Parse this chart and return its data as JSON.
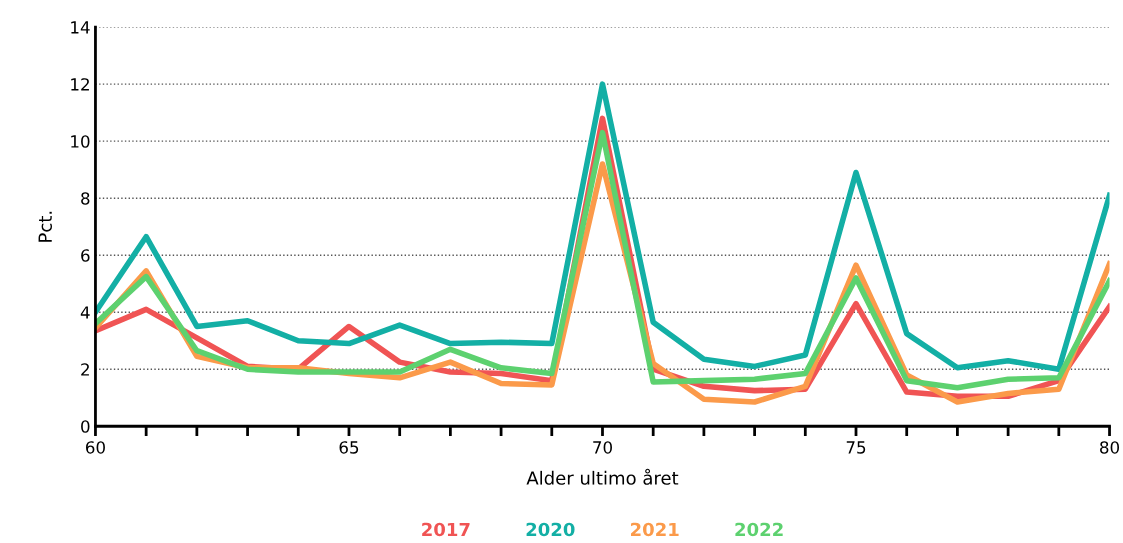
{
  "chart_data": {
    "type": "line",
    "xlabel": "Alder ultimo året",
    "ylabel": "Pct.",
    "x": [
      60,
      61,
      62,
      63,
      64,
      65,
      66,
      67,
      68,
      69,
      70,
      71,
      72,
      73,
      74,
      75,
      76,
      77,
      78,
      79,
      80
    ],
    "xlim": [
      60,
      80
    ],
    "xticks": [
      60,
      {
        "value": 61,
        "label": null
      },
      {
        "value": 62,
        "label": null
      },
      {
        "value": 63,
        "label": null
      },
      {
        "value": 64,
        "label": null
      },
      65,
      {
        "value": 66,
        "label": null
      },
      {
        "value": 67,
        "label": null
      },
      {
        "value": 68,
        "label": null
      },
      {
        "value": 69,
        "label": null
      },
      70,
      {
        "value": 71,
        "label": null
      },
      {
        "value": 72,
        "label": null
      },
      {
        "value": 73,
        "label": null
      },
      {
        "value": 74,
        "label": null
      },
      75,
      {
        "value": 76,
        "label": null
      },
      {
        "value": 77,
        "label": null
      },
      {
        "value": 78,
        "label": null
      },
      {
        "value": 79,
        "label": null
      },
      80
    ],
    "ylim": [
      0,
      14
    ],
    "yticks": [
      0,
      2,
      4,
      6,
      8,
      10,
      12,
      14
    ],
    "grid": "y",
    "legend": "bottom",
    "marker": "none",
    "line_style": "solid",
    "series": [
      {
        "name": "2017",
        "color": "#f05454",
        "values": [
          3.35,
          4.1,
          3.1,
          2.1,
          2.0,
          3.5,
          2.25,
          1.9,
          1.85,
          1.6,
          10.8,
          2.0,
          1.4,
          1.25,
          1.3,
          4.3,
          1.2,
          1.05,
          1.05,
          1.6,
          4.2
        ]
      },
      {
        "name": "2020",
        "color": "#13afa5",
        "values": [
          4.0,
          6.65,
          3.5,
          3.7,
          3.0,
          2.9,
          3.55,
          2.9,
          2.95,
          2.9,
          12.0,
          3.65,
          2.35,
          2.1,
          2.5,
          8.9,
          3.25,
          2.05,
          2.3,
          2.0,
          8.1
        ]
      },
      {
        "name": "2021",
        "color": "#fb9a4a",
        "values": [
          3.45,
          5.45,
          2.45,
          2.05,
          2.05,
          1.85,
          1.7,
          2.25,
          1.5,
          1.45,
          9.2,
          2.2,
          0.95,
          0.85,
          1.4,
          5.65,
          1.8,
          0.85,
          1.15,
          1.3,
          5.7
        ]
      },
      {
        "name": "2022",
        "color": "#5dd16f",
        "values": [
          3.6,
          5.25,
          2.65,
          2.0,
          1.9,
          1.9,
          1.9,
          2.7,
          2.05,
          1.85,
          10.3,
          1.55,
          1.6,
          1.65,
          1.85,
          5.2,
          1.6,
          1.35,
          1.65,
          1.7,
          5.1
        ]
      }
    ]
  }
}
